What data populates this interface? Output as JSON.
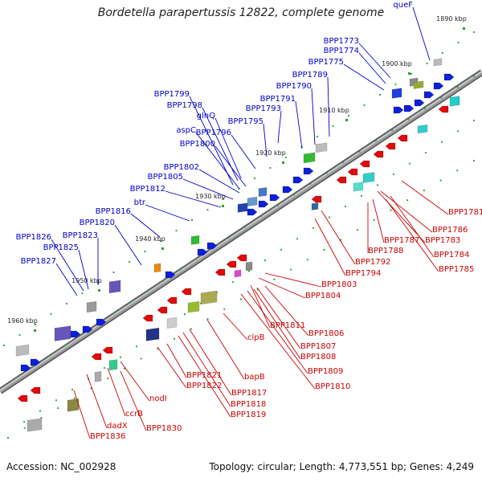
{
  "header": {
    "title": "Bordetella parapertussis 12822, complete genome"
  },
  "footer": {
    "accession": "Accession: NC_002928",
    "topology": "Topology: circular; Length: 4,773,551 bp; Genes: 4,249"
  },
  "colors": {
    "forward_label": "#0000cc",
    "reverse_label": "#cc0000",
    "backbone": "#7a7a7a",
    "tick": "#00aa00"
  },
  "scale": {
    "ticks": [
      "1890 kbp",
      "1900 kbp",
      "1910 kbp",
      "1920 kbp",
      "1930 kbp",
      "1940 kbp",
      "1950 kbp",
      "1960 kbp"
    ]
  },
  "forward_genes": [
    "queF",
    "BPP1773",
    "BPP1774",
    "BPP1775",
    "BPP1789",
    "BPP1790",
    "BPP1791",
    "BPP1793",
    "BPP1795",
    "BPP1796",
    "glnQ",
    "BPP1798",
    "BPP1799",
    "aspC",
    "BPP1800",
    "BPP1802",
    "BPP1805",
    "BPP1812",
    "btr",
    "BPP1816",
    "BPP1820",
    "BPP1823",
    "BPP1825",
    "BPP1826",
    "BPP1827"
  ],
  "reverse_genes": [
    "BPP1781",
    "BPP1786",
    "BPP1783",
    "BPP1787",
    "BPP1788",
    "BPP1784",
    "BPP1785",
    "BPP1792",
    "BPP1794",
    "BPP1803",
    "BPP1804",
    "BPP1806",
    "BPP1811",
    "BPP1807",
    "BPP1808",
    "clpB",
    "BPP1809",
    "BPP1810",
    "bapB",
    "BPP1817",
    "BPP1818",
    "BPP1819",
    "BPP1821",
    "BPP1822",
    "nodI",
    "ccrB",
    "BPP1830",
    "dadX",
    "BPP1836"
  ]
}
